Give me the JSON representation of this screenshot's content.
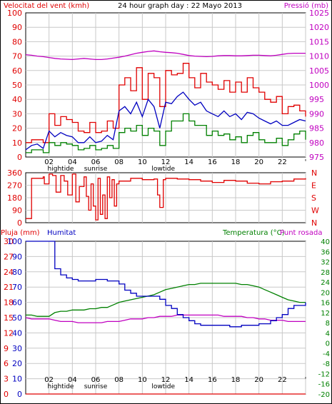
{
  "header": {
    "left": "Velocitat del vent (kmh)",
    "center": "24 hour graph day : 22 Mayo 2013",
    "right": "Pressió (mb)"
  },
  "x_ticks": [
    "02",
    "04",
    "06",
    "08",
    "10",
    "12",
    "14",
    "16",
    "18",
    "20",
    "22",
    "'"
  ],
  "annotations": [
    "hightide",
    "sunrise",
    "lowtide"
  ],
  "colors": {
    "wind_gust": "#e00000",
    "wind_avg": "#0000c0",
    "wind_low": "#008000",
    "pressure": "#c000c0",
    "rain": "#e00000",
    "humidity": "#0000c0",
    "temperature": "#008000",
    "dewpoint": "#c000c0",
    "grid": "#c8c8c8",
    "axis_red": "#e00000",
    "axis_blue": "#0000c0",
    "axis_green": "#008000",
    "axis_magenta": "#c000c0"
  },
  "chart_data": [
    {
      "type": "line",
      "title": "24 hour graph day : 22 Mayo 2013",
      "ylabel": "Velocitat del vent (kmh)",
      "y2label": "Pressió (mb)",
      "ylim": [
        0,
        100
      ],
      "y2lim": [
        975,
        1025
      ],
      "yticks": [
        "0",
        "10",
        "20",
        "30",
        "40",
        "50",
        "60",
        "70",
        "80",
        "90",
        "100"
      ],
      "y2ticks": [
        "975",
        "980",
        "985",
        "990",
        "995",
        "1000",
        "1005",
        "1010",
        "1015",
        "1020",
        "1025"
      ],
      "x_hours": [
        0,
        0.5,
        1,
        1.5,
        2,
        2.5,
        3,
        3.5,
        4,
        4.5,
        5,
        5.5,
        6,
        6.5,
        7,
        7.5,
        8,
        8.5,
        9,
        9.5,
        10,
        10.5,
        11,
        11.5,
        12,
        12.5,
        13,
        13.5,
        14,
        14.5,
        15,
        15.5,
        16,
        16.5,
        17,
        17.5,
        18,
        18.5,
        19,
        19.5,
        20,
        20.5,
        21,
        21.5,
        22,
        22.5,
        23,
        23.5,
        24
      ],
      "series": [
        {
          "key": "wind_gust",
          "values": [
            10,
            12,
            12,
            10,
            30,
            22,
            28,
            26,
            24,
            18,
            17,
            24,
            17,
            18,
            25,
            20,
            50,
            55,
            46,
            62,
            40,
            58,
            55,
            35,
            60,
            57,
            58,
            65,
            55,
            48,
            58,
            52,
            50,
            47,
            53,
            45,
            52,
            45,
            55,
            48,
            45,
            40,
            38,
            42,
            30,
            35,
            36,
            32,
            28
          ]
        },
        {
          "key": "wind_avg",
          "values": [
            5,
            8,
            9,
            6,
            18,
            14,
            17,
            15,
            14,
            10,
            10,
            14,
            10,
            11,
            15,
            12,
            32,
            35,
            30,
            38,
            28,
            40,
            35,
            20,
            38,
            37,
            42,
            45,
            40,
            36,
            38,
            32,
            30,
            28,
            32,
            28,
            30,
            26,
            31,
            30,
            27,
            25,
            23,
            25,
            22,
            22,
            24,
            26,
            25
          ]
        },
        {
          "key": "wind_low",
          "values": [
            3,
            5,
            5,
            3,
            10,
            8,
            10,
            9,
            8,
            5,
            6,
            8,
            5,
            6,
            8,
            6,
            17,
            20,
            18,
            22,
            15,
            20,
            18,
            8,
            18,
            25,
            25,
            30,
            25,
            22,
            22,
            15,
            18,
            15,
            16,
            12,
            14,
            10,
            15,
            17,
            12,
            10,
            10,
            13,
            8,
            12,
            16,
            18,
            12
          ]
        },
        {
          "key": "pressure",
          "values": [
            1010.5,
            1010.3,
            1010,
            1009.8,
            1009.5,
            1009.2,
            1009,
            1008.9,
            1008.8,
            1009,
            1009.2,
            1009,
            1008.8,
            1008.8,
            1009,
            1009.3,
            1009.6,
            1010,
            1010.5,
            1011,
            1011.3,
            1011.6,
            1011.8,
            1011.5,
            1011.3,
            1011.2,
            1011,
            1010.6,
            1010.2,
            1010,
            1009.9,
            1009.8,
            1009.9,
            1010.1,
            1010.2,
            1010.2,
            1010.1,
            1010.1,
            1010.2,
            1010.3,
            1010.3,
            1010.2,
            1010.1,
            1010.3,
            1010.6,
            1010.9,
            1011,
            1011,
            1011
          ]
        }
      ]
    },
    {
      "type": "line",
      "ylabel": "direction",
      "ylim": [
        0,
        360
      ],
      "yticks": [
        "0",
        "90",
        "180",
        "270",
        "360"
      ],
      "y2ticks": [
        "N",
        "W",
        "S",
        "E",
        "N"
      ],
      "x_hours": [
        0,
        0.3,
        0.5,
        1.5,
        1.6,
        2,
        2.3,
        2.6,
        3,
        3.3,
        3.6,
        4,
        4.3,
        4.6,
        5,
        5.2,
        5.4,
        5.6,
        5.8,
        6,
        6.2,
        6.4,
        6.6,
        6.8,
        7,
        7.2,
        7.4,
        7.6,
        7.8,
        8,
        9,
        10,
        11,
        11.3,
        11.5,
        11.8,
        12,
        13,
        14,
        15,
        16,
        17,
        18,
        19,
        20,
        21,
        22,
        23,
        24
      ],
      "series": [
        {
          "key": "wind_dir",
          "values": [
            30,
            30,
            320,
            330,
            280,
            350,
            340,
            220,
            340,
            300,
            200,
            350,
            150,
            260,
            330,
            190,
            90,
            280,
            120,
            20,
            320,
            60,
            200,
            30,
            330,
            180,
            310,
            120,
            280,
            300,
            320,
            310,
            315,
            200,
            110,
            310,
            320,
            315,
            310,
            300,
            290,
            305,
            300,
            285,
            280,
            295,
            300,
            315,
            320
          ]
        }
      ]
    },
    {
      "type": "line",
      "legend": [
        "Pluja (mm)",
        "Humitat",
        "Temperatura (°C)",
        "Punt rosada"
      ],
      "ylabel": "Pluja (mm)",
      "y1ticks_rain": [
        "0",
        "3",
        "6",
        "9",
        "12",
        "15",
        "18",
        "21",
        "24",
        "27",
        "30"
      ],
      "y1ticks_hum": [
        "0",
        "10",
        "20",
        "30",
        "40",
        "50",
        "60",
        "70",
        "80",
        "90",
        "100"
      ],
      "y2label": "Temperatura (°C)",
      "y2ticks": [
        "-20",
        "-16",
        "-12",
        "-8",
        "-4",
        "0",
        "4",
        "8",
        "12",
        "16",
        "20",
        "24",
        "28",
        "32",
        "36",
        "40"
      ],
      "hum_lim": [
        0,
        100
      ],
      "temp_lim": [
        -20,
        40
      ],
      "x_hours": [
        0,
        0.5,
        1,
        1.5,
        2,
        2.5,
        3,
        3.5,
        4,
        4.5,
        5,
        5.5,
        6,
        6.5,
        7,
        7.5,
        8,
        8.5,
        9,
        9.5,
        10,
        10.5,
        11,
        11.5,
        12,
        12.5,
        13,
        13.5,
        14,
        14.5,
        15,
        15.5,
        16,
        16.5,
        17,
        17.5,
        18,
        18.5,
        19,
        19.5,
        20,
        20.5,
        21,
        21.5,
        22,
        22.5,
        23,
        23.5,
        24
      ],
      "series": [
        {
          "key": "humidity",
          "values": [
            100,
            100,
            100,
            100,
            100,
            82,
            78,
            76,
            75,
            74,
            74,
            74,
            75,
            75,
            74,
            74,
            72,
            68,
            66,
            64,
            64,
            64,
            64,
            62,
            58,
            56,
            52,
            50,
            48,
            46,
            45,
            45,
            45,
            45,
            45,
            44,
            44,
            45,
            45,
            45,
            46,
            46,
            48,
            50,
            52,
            56,
            58,
            58,
            60
          ]
        },
        {
          "key": "temperature",
          "values": [
            11,
            11,
            10.5,
            10.5,
            10.5,
            12,
            12.5,
            12.5,
            13,
            13,
            13,
            13.5,
            13.5,
            14,
            14,
            15,
            16,
            16.5,
            17,
            17.5,
            18,
            18.5,
            19,
            20,
            21,
            21.5,
            22,
            22.5,
            23,
            23,
            23.5,
            23.5,
            23.5,
            23.5,
            23.5,
            23.5,
            23.5,
            23,
            23,
            22.5,
            22,
            21,
            20,
            19,
            18,
            17,
            16.5,
            16,
            16
          ]
        },
        {
          "key": "dewpoint",
          "values": [
            10,
            9.5,
            9.5,
            9.5,
            9.5,
            9,
            8.5,
            8.5,
            8.5,
            8,
            8,
            8,
            8,
            8,
            8.5,
            8.5,
            8.5,
            9,
            9.5,
            9.5,
            9.5,
            10,
            10,
            10.5,
            10.5,
            10.5,
            11,
            11,
            11,
            11,
            11,
            11,
            11,
            11,
            10.5,
            10.5,
            10.5,
            10.5,
            10,
            10,
            9.5,
            9.5,
            9,
            9,
            9,
            8.5,
            8.5,
            8.5,
            8.5
          ]
        },
        {
          "key": "rain",
          "values": [
            0,
            0,
            0,
            0,
            0,
            0,
            0,
            0,
            0,
            0,
            0,
            0,
            0,
            0,
            0,
            0,
            0,
            0,
            0,
            0,
            0,
            0,
            0,
            0,
            0,
            0,
            0,
            0,
            0,
            0,
            0,
            0,
            0,
            0,
            0,
            0,
            0,
            0,
            0,
            0,
            0,
            0,
            0,
            0,
            0,
            0,
            0,
            0,
            0
          ]
        }
      ]
    }
  ]
}
